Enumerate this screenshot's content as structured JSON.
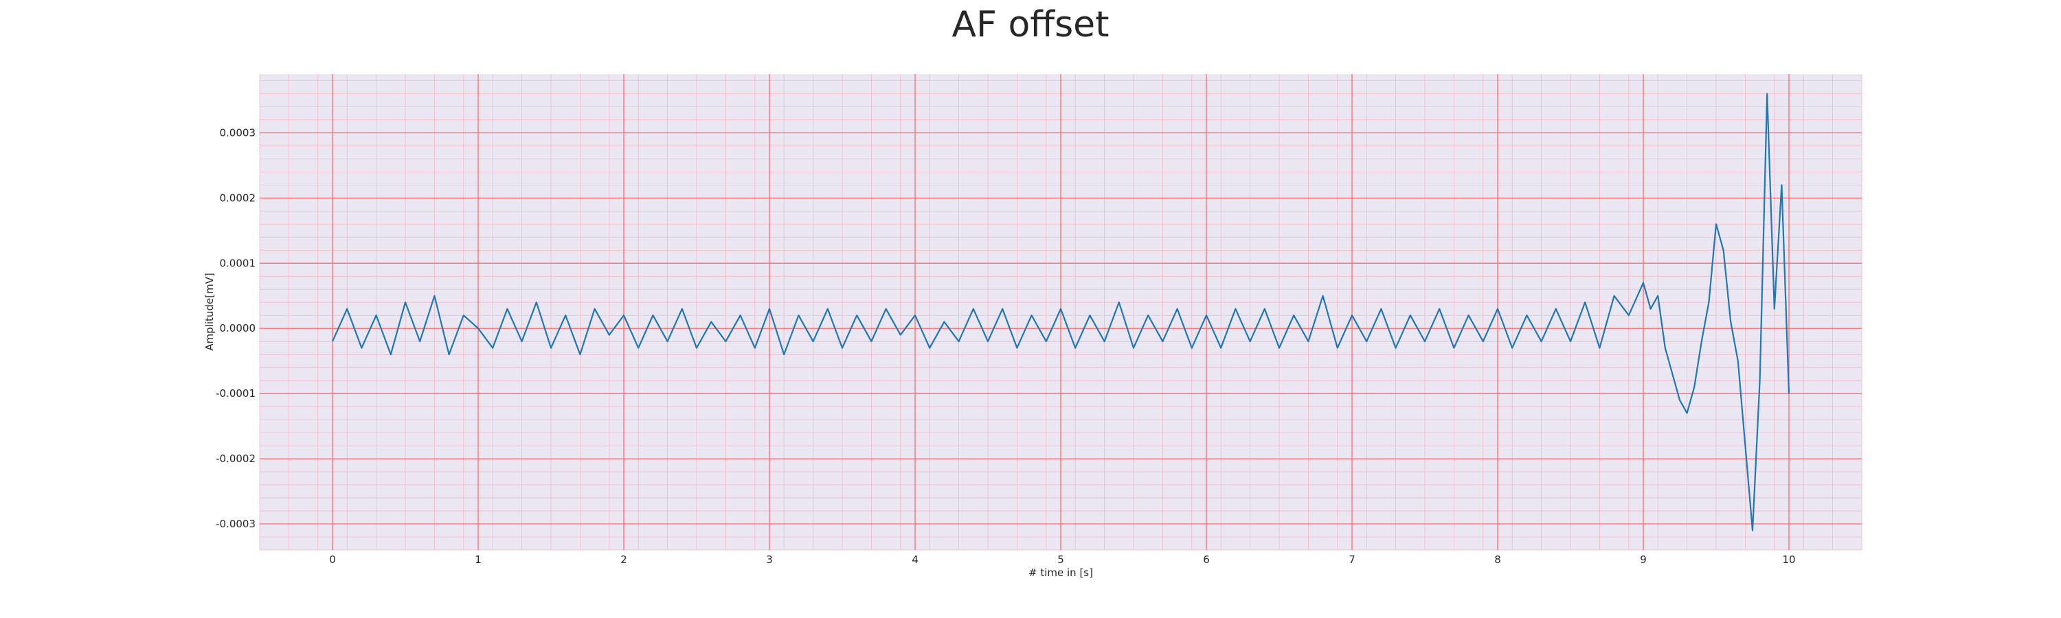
{
  "chart_data": {
    "type": "line",
    "title": "AF offset",
    "xlabel": "# time in [s]",
    "ylabel": "Amplitude[mV]",
    "xlim": [
      -0.5,
      10.5
    ],
    "ylim": [
      -0.00034,
      0.00039
    ],
    "xticks": [
      0,
      1,
      2,
      3,
      4,
      5,
      6,
      7,
      8,
      9,
      10
    ],
    "yticks": [
      -0.0003,
      -0.0002,
      -0.0001,
      0.0,
      0.0001,
      0.0002,
      0.0003
    ],
    "ytick_labels": [
      "-0.0003",
      "-0.0002",
      "-0.0001",
      "0.0000",
      "0.0001",
      "0.0002",
      "0.0003"
    ],
    "grid": true,
    "legend": "none",
    "colors": {
      "line": "#1f77b4",
      "major_grid": "#ff6b6b",
      "minor_grid": "#f4b8c6",
      "background": "#eae6f2"
    },
    "series": [
      {
        "x": [
          0.0,
          0.1,
          0.2,
          0.3,
          0.4,
          0.5,
          0.6,
          0.7,
          0.8,
          0.9,
          1.0,
          1.1,
          1.2,
          1.3,
          1.4,
          1.5,
          1.6,
          1.7,
          1.8,
          1.9,
          2.0,
          2.1,
          2.2,
          2.3,
          2.4,
          2.5,
          2.6,
          2.7,
          2.8,
          2.9,
          3.0,
          3.1,
          3.2,
          3.3,
          3.4,
          3.5,
          3.6,
          3.7,
          3.8,
          3.9,
          4.0,
          4.1,
          4.2,
          4.3,
          4.4,
          4.5,
          4.6,
          4.7,
          4.8,
          4.9,
          5.0,
          5.1,
          5.2,
          5.3,
          5.4,
          5.5,
          5.6,
          5.7,
          5.8,
          5.9,
          6.0,
          6.1,
          6.2,
          6.3,
          6.4,
          6.5,
          6.6,
          6.7,
          6.8,
          6.9,
          7.0,
          7.1,
          7.2,
          7.3,
          7.4,
          7.5,
          7.6,
          7.7,
          7.8,
          7.9,
          8.0,
          8.1,
          8.2,
          8.3,
          8.4,
          8.5,
          8.6,
          8.7,
          8.8,
          8.9,
          9.0,
          9.05,
          9.1,
          9.15,
          9.2,
          9.25,
          9.3,
          9.35,
          9.4,
          9.45,
          9.5,
          9.55,
          9.6,
          9.65,
          9.7,
          9.75,
          9.8,
          9.85,
          9.9,
          9.95,
          10.0
        ],
        "values": [
          -2e-05,
          3e-05,
          -3e-05,
          2e-05,
          -4e-05,
          4e-05,
          -2e-05,
          5e-05,
          -4e-05,
          2e-05,
          0.0,
          -3e-05,
          3e-05,
          -2e-05,
          4e-05,
          -3e-05,
          2e-05,
          -4e-05,
          3e-05,
          -1e-05,
          2e-05,
          -3e-05,
          2e-05,
          -2e-05,
          3e-05,
          -3e-05,
          1e-05,
          -2e-05,
          2e-05,
          -3e-05,
          3e-05,
          -4e-05,
          2e-05,
          -2e-05,
          3e-05,
          -3e-05,
          2e-05,
          -2e-05,
          3e-05,
          -1e-05,
          2e-05,
          -3e-05,
          1e-05,
          -2e-05,
          3e-05,
          -2e-05,
          3e-05,
          -3e-05,
          2e-05,
          -2e-05,
          3e-05,
          -3e-05,
          2e-05,
          -2e-05,
          4e-05,
          -3e-05,
          2e-05,
          -2e-05,
          3e-05,
          -3e-05,
          2e-05,
          -3e-05,
          3e-05,
          -2e-05,
          3e-05,
          -3e-05,
          2e-05,
          -2e-05,
          5e-05,
          -3e-05,
          2e-05,
          -2e-05,
          3e-05,
          -3e-05,
          2e-05,
          -2e-05,
          3e-05,
          -3e-05,
          2e-05,
          -2e-05,
          3e-05,
          -3e-05,
          2e-05,
          -2e-05,
          3e-05,
          -2e-05,
          4e-05,
          -3e-05,
          5e-05,
          2e-05,
          7e-05,
          3e-05,
          5e-05,
          -3e-05,
          -7e-05,
          -0.00011,
          -0.00013,
          -9e-05,
          -2e-05,
          4e-05,
          0.00016,
          0.00012,
          1e-05,
          -5e-05,
          -0.00018,
          -0.00031,
          -8e-05,
          0.00036,
          3e-05,
          0.00022,
          -0.0001
        ]
      }
    ]
  }
}
